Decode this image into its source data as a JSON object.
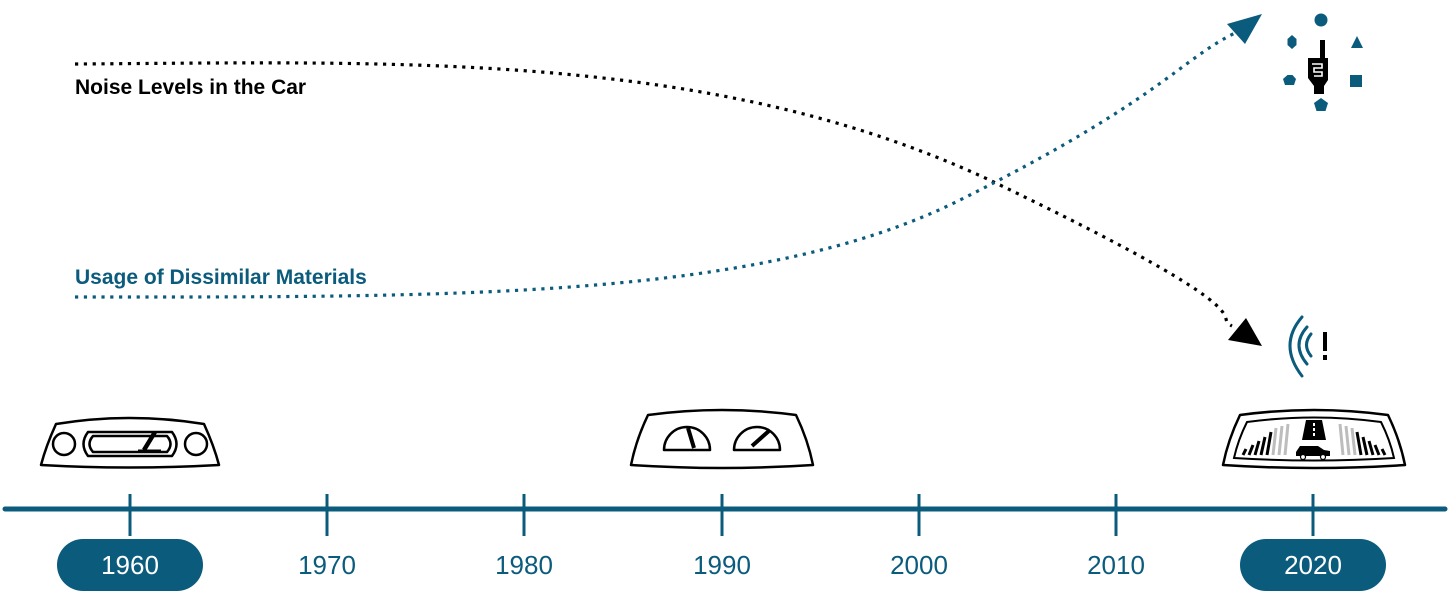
{
  "colors": {
    "accent": "#0b5b7d",
    "text_dark": "#000000",
    "highlight_text": "#ffffff",
    "gauge_light": "#bdbdbd"
  },
  "trends": [
    {
      "label": "Noise Levels in the Car",
      "color": "#000000",
      "direction": "decreasing",
      "end_icon": "sound-alert-icon"
    },
    {
      "label": "Usage of Dissimilar Materials",
      "color": "#0b5b7d",
      "direction": "increasing",
      "end_icon": "materials-shapes-hand-icon"
    }
  ],
  "timeline": {
    "years": [
      "1960",
      "1970",
      "1980",
      "1990",
      "2000",
      "2010",
      "2020"
    ],
    "highlighted": [
      "1960",
      "2020"
    ]
  },
  "dashboards": [
    {
      "year": "1960",
      "icon": "dashboard-1960-icon"
    },
    {
      "year": "1990",
      "icon": "dashboard-1990-icon"
    },
    {
      "year": "2020",
      "icon": "dashboard-2020-icon"
    }
  ],
  "alert_symbol": "!"
}
